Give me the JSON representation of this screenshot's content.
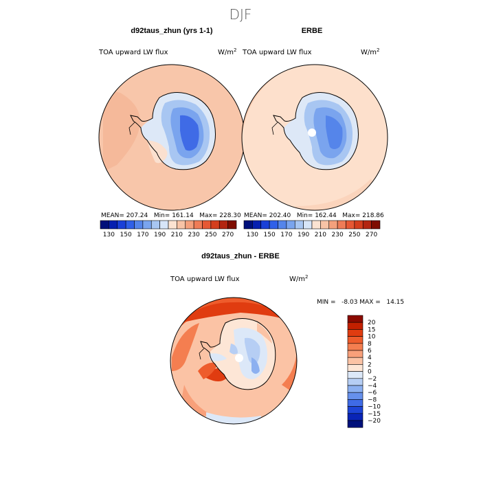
{
  "chart_data": {
    "type": "polar-map-panels",
    "season": "DJF",
    "panels": [
      {
        "id": "model",
        "title": "d92taus_zhun (yrs 1-1)",
        "field": "TOA upward LW flux",
        "units_base": "W/m",
        "units_exp": "2",
        "stats_line": "MEAN= 207.24   Min= 161.14   Max= 228.30",
        "stats": {
          "mean": 207.24,
          "min": 161.14,
          "max": 228.3
        }
      },
      {
        "id": "obs",
        "title": "ERBE",
        "field": "TOA upward LW flux",
        "units_base": "W/m",
        "units_exp": "2",
        "stats_line": "MEAN= 202.40   Min= 162.44   Max= 218.86",
        "stats": {
          "mean": 202.4,
          "min": 162.44,
          "max": 218.86
        }
      },
      {
        "id": "diff",
        "title": "d92taus_zhun - ERBE",
        "field": "TOA upward LW flux",
        "units_base": "W/m",
        "units_exp": "2",
        "minmax_line": "MIN =   -8.03 MAX =   14.15",
        "stats": {
          "min": -8.03,
          "max": 14.15
        }
      }
    ],
    "colorbar_abs": {
      "levels": [
        120,
        130,
        140,
        150,
        160,
        170,
        180,
        190,
        200,
        210,
        220,
        230,
        240,
        250,
        260,
        270,
        280
      ],
      "tick_labels": [
        "130",
        "150",
        "170",
        "190",
        "210",
        "230",
        "250",
        "270"
      ],
      "colors": [
        "#00107a",
        "#0620b0",
        "#1a40d8",
        "#3060e8",
        "#5585ea",
        "#7aa4ee",
        "#a8c6f2",
        "#d7e5f8",
        "#fbe3d2",
        "#f7c3a6",
        "#f4a07c",
        "#ee7c57",
        "#e65834",
        "#d43e1d",
        "#b32510",
        "#7f0d00"
      ]
    },
    "colorbar_diff": {
      "tick_labels": [
        "20",
        "15",
        "10",
        "8",
        "6",
        "4",
        "2",
        "0",
        "−2",
        "−4",
        "−6",
        "−8",
        "−10",
        "−15",
        "−20"
      ],
      "colors": [
        "#8b0a00",
        "#c32000",
        "#e03c10",
        "#ee5c2c",
        "#f47e50",
        "#f8a07a",
        "#fbc3a5",
        "#fde6d6",
        "#dce8f8",
        "#b6cef4",
        "#8cb0f0",
        "#6690ec",
        "#3f6be6",
        "#1d44d6",
        "#0924b6",
        "#00107a"
      ]
    }
  },
  "page": {
    "title": "DJF"
  }
}
